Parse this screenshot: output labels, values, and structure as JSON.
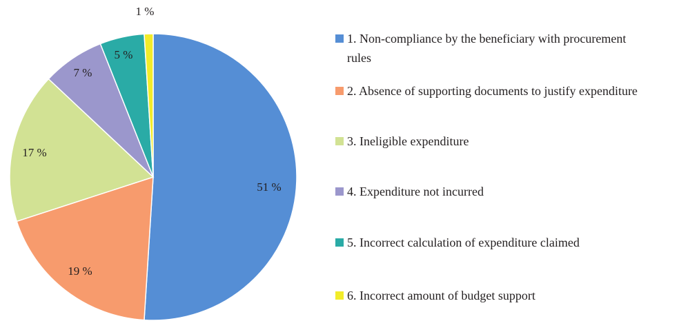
{
  "chart_data": {
    "type": "pie",
    "title": "",
    "legend_position": "right",
    "slices": [
      {
        "label": "1. Non-compliance by the beneficiary with procurement rules",
        "legend_lines": [
          "1. Non-compliance by the beneficiary with procurement",
          "rules"
        ],
        "value": 51,
        "value_label": "51 %",
        "color": "#558ed5"
      },
      {
        "label": "2. Absence of supporting documents to justify expenditure",
        "legend_lines": [
          "2. Absence of supporting documents to justify expenditure"
        ],
        "value": 19,
        "value_label": "19 %",
        "color": "#f79b6d"
      },
      {
        "label": "3. Ineligible expenditure",
        "legend_lines": [
          "3. Ineligible expenditure"
        ],
        "value": 17,
        "value_label": "17 %",
        "color": "#d2e294"
      },
      {
        "label": "4. Expenditure not incurred",
        "legend_lines": [
          "4. Expenditure not incurred"
        ],
        "value": 7,
        "value_label": "7 %",
        "color": "#9b97cc"
      },
      {
        "label": "5. Incorrect calculation of expenditure claimed",
        "legend_lines": [
          "5. Incorrect calculation of expenditure claimed"
        ],
        "value": 5,
        "value_label": "5 %",
        "color": "#2aaba6"
      },
      {
        "label": "6. Incorrect amount of budget support",
        "legend_lines": [
          "6. Incorrect amount of budget support"
        ],
        "value": 1,
        "value_label": "1 %",
        "color": "#f2ec2a"
      }
    ]
  }
}
